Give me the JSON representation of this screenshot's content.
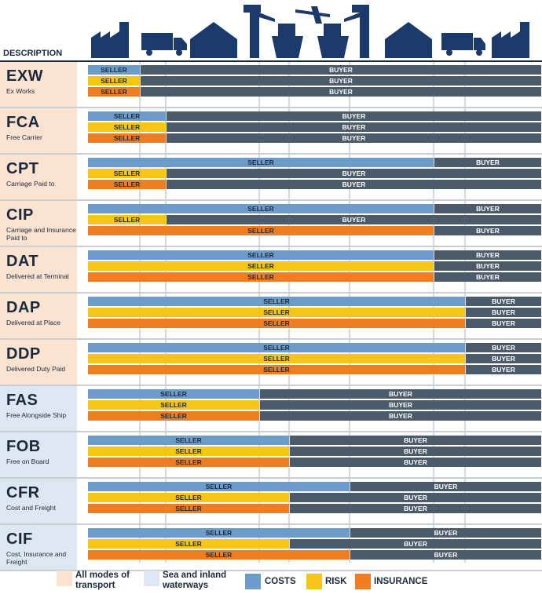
{
  "header": {
    "description_label": "DESCRIPTION",
    "icons": [
      "factory-icon",
      "truck-icon",
      "warehouse-icon",
      "port-crane-icon",
      "ship-icon",
      "airplane-icon",
      "port-crane-icon",
      "warehouse-icon",
      "truck-icon",
      "factory-icon"
    ]
  },
  "colors": {
    "costs": "#6d9ccb",
    "risk": "#f5c518",
    "insurance": "#ef7d22",
    "buyer": "#4b5b6c",
    "all_modes": "#fbe2d1",
    "sea_modes": "#dde7f1",
    "navy": "#1b2a3a"
  },
  "terms": [
    {
      "code": "EXW",
      "name": "Ex Works",
      "mode": "all",
      "costs": {
        "seller": "SELLER",
        "buyer": "BUYER"
      },
      "risk": {
        "seller": "SELLER",
        "buyer": "BUYER"
      },
      "insurance": {
        "seller": "SELLER",
        "buyer": "BUYER"
      }
    },
    {
      "code": "FCA",
      "name": "Free Carrier",
      "mode": "all",
      "costs": {
        "seller": "SELLER",
        "buyer": "BUYER"
      },
      "risk": {
        "seller": "SELLER",
        "buyer": "BUYER"
      },
      "insurance": {
        "seller": "SELLER",
        "buyer": "BUYER"
      }
    },
    {
      "code": "CPT",
      "name": "Carriage Paid to",
      "mode": "all",
      "costs": {
        "seller": "SELLER",
        "buyer": "BUYER"
      },
      "risk": {
        "seller": "SELLER",
        "buyer": "BUYER"
      },
      "insurance": {
        "seller": "SELLER",
        "buyer": "BUYER"
      }
    },
    {
      "code": "CIP",
      "name": "Carriage and Insurance Paid to",
      "mode": "all",
      "costs": {
        "seller": "SELLER",
        "buyer": "BUYER"
      },
      "risk": {
        "seller": "SELLER",
        "buyer": "BUYER"
      },
      "insurance": {
        "seller": "SELLER",
        "buyer": "BUYER"
      }
    },
    {
      "code": "DAT",
      "name": "Delivered at Terminal",
      "mode": "all",
      "costs": {
        "seller": "SELLER",
        "buyer": "BUYER"
      },
      "risk": {
        "seller": "SELLER",
        "buyer": "BUYER"
      },
      "insurance": {
        "seller": "SELLER",
        "buyer": "BUYER"
      }
    },
    {
      "code": "DAP",
      "name": "Delivered at Place",
      "mode": "all",
      "costs": {
        "seller": "SELLER",
        "buyer": "BUYER"
      },
      "risk": {
        "seller": "SELLER",
        "buyer": "BUYER"
      },
      "insurance": {
        "seller": "SELLER",
        "buyer": "BUYER"
      }
    },
    {
      "code": "DDP",
      "name": "Delivered Duty Paid",
      "mode": "all",
      "costs": {
        "seller": "SELLER",
        "buyer": "BUYER"
      },
      "risk": {
        "seller": "SELLER",
        "buyer": "BUYER"
      },
      "insurance": {
        "seller": "SELLER",
        "buyer": "BUYER"
      }
    },
    {
      "code": "FAS",
      "name": "Free Alongside Ship",
      "mode": "sea",
      "costs": {
        "seller": "SELLER",
        "buyer": "BUYER"
      },
      "risk": {
        "seller": "SELLER",
        "buyer": "BUYER"
      },
      "insurance": {
        "seller": "SELLER",
        "buyer": "BUYER"
      }
    },
    {
      "code": "FOB",
      "name": "Free on Board",
      "mode": "sea",
      "costs": {
        "seller": "SELLER",
        "buyer": "BUYER"
      },
      "risk": {
        "seller": "SELLER",
        "buyer": "BUYER"
      },
      "insurance": {
        "seller": "SELLER",
        "buyer": "BUYER"
      }
    },
    {
      "code": "CFR",
      "name": "Cost and Freight",
      "mode": "sea",
      "costs": {
        "seller": "SELLER",
        "buyer": "BUYER"
      },
      "risk": {
        "seller": "SELLER",
        "buyer": "BUYER"
      },
      "insurance": {
        "seller": "SELLER",
        "buyer": "BUYER"
      }
    },
    {
      "code": "CIF",
      "name": "Cost, Insurance and Freight",
      "mode": "sea",
      "costs": {
        "seller": "SELLER",
        "buyer": "BUYER"
      },
      "risk": {
        "seller": "SELLER",
        "buyer": "BUYER"
      },
      "insurance": {
        "seller": "SELLER",
        "buyer": "BUYER"
      }
    }
  ],
  "legend": {
    "all_modes": "All modes of transport",
    "sea_modes": "Sea and inland waterways",
    "costs": "COSTS",
    "risk": "RISK",
    "insurance": "INSURANCE"
  }
}
